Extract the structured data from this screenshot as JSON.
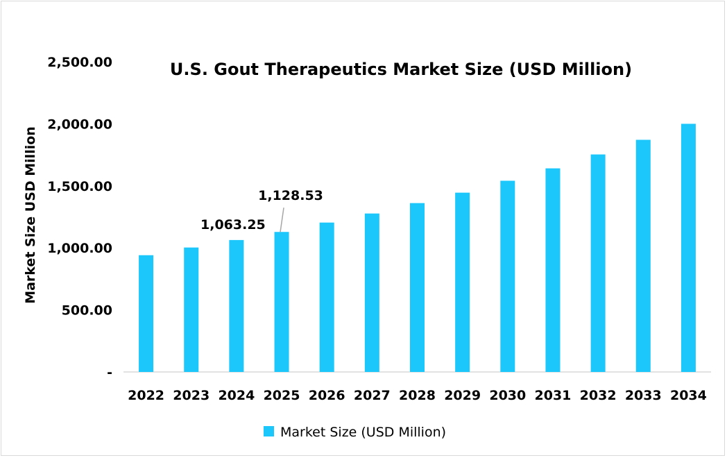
{
  "chart_data": {
    "type": "bar",
    "title": "U.S. Gout Therapeutics Market Size (USD Million)",
    "xlabel": "",
    "ylabel": "Market Size USD Million",
    "categories": [
      "2022",
      "2023",
      "2024",
      "2025",
      "2026",
      "2027",
      "2028",
      "2029",
      "2030",
      "2031",
      "2032",
      "2033",
      "2034"
    ],
    "series": [
      {
        "name": "Market Size (USD Million)",
        "values": [
          941,
          1003,
          1063.25,
          1128.53,
          1204,
          1277,
          1361,
          1445,
          1541,
          1641,
          1753,
          1871,
          2000
        ]
      }
    ],
    "data_labels": [
      {
        "category": "2024",
        "text": "1,063.25"
      },
      {
        "category": "2025",
        "text": "1,128.53"
      }
    ],
    "ylim": [
      0,
      2500
    ],
    "yticks": [
      0,
      500,
      1000,
      1500,
      2000,
      2500
    ],
    "ytick_labels": [
      "-",
      "500.00",
      "1,000.00",
      "1,500.00",
      "2,000.00",
      "2,500.00"
    ],
    "grid": false,
    "legend": "bottom",
    "colors": {
      "bar": "#1CC7FC",
      "axis": "#d9d9d9",
      "leader": "#a6a6a6"
    }
  }
}
